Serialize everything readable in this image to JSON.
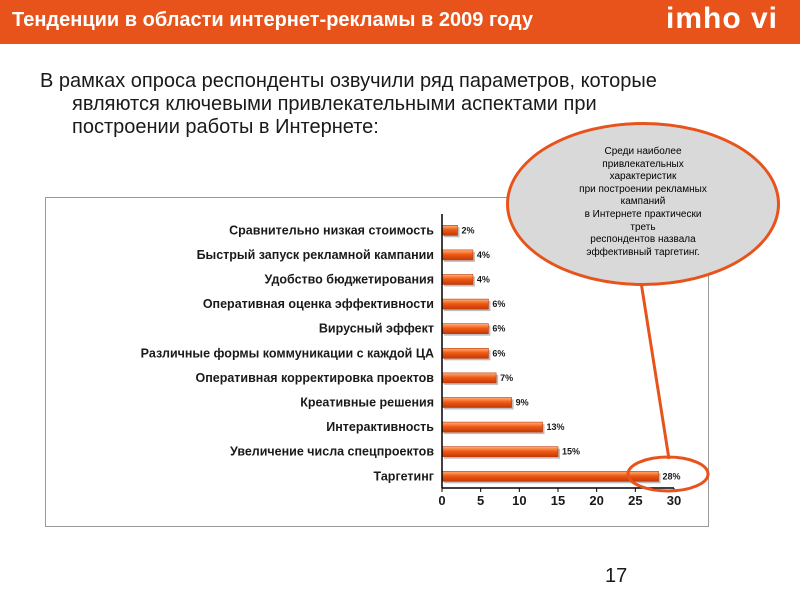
{
  "header": {
    "title": "Тенденции в области интернет-рекламы в 2009 году",
    "logo": "imho vi"
  },
  "intro": "В рамках опроса респонденты озвучили ряд параметров, которые являются ключевыми привлекательными аспектами при построении работы в Интернете:",
  "callout": {
    "lines": [
      "Среди наиболее",
      "привлекательных",
      "характеристик",
      "при построении рекламных",
      "кампаний",
      "в Интернете практически",
      "треть",
      "респондентов назвала",
      "эффективный таргетинг."
    ]
  },
  "colors": {
    "accent": "#e8531b",
    "bar_fill": "#f05a14",
    "bar_edge": "#c23a08",
    "callout_bg": "#d9d9d9"
  },
  "chart_data": {
    "type": "bar",
    "orientation": "horizontal",
    "categories": [
      "Сравнительно низкая стоимость",
      "Быстрый запуск рекламной кампании",
      "Удобство бюджетирования",
      "Оперативная оценка эффективности",
      "Вирусный эффект",
      "Различные формы коммуникации с каждой ЦА",
      "Оперативная корректировка проектов",
      "Креативные решения",
      "Интерактивность",
      "Увеличение числа спецпроектов",
      "Таргетинг"
    ],
    "values": [
      2,
      4,
      4,
      6,
      6,
      6,
      7,
      9,
      13,
      15,
      28
    ],
    "data_labels": [
      "2%",
      "4%",
      "4%",
      "6%",
      "6%",
      "6%",
      "7%",
      "9%",
      "13%",
      "15%",
      "28%"
    ],
    "xlim": [
      0,
      30
    ],
    "xticks": [
      0,
      5,
      10,
      15,
      20,
      25,
      30
    ],
    "xtick_labels": [
      "0",
      "5",
      "10",
      "15",
      "20",
      "25",
      "30"
    ],
    "grid": false,
    "highlight": "Таргетинг"
  },
  "page_number": "17"
}
